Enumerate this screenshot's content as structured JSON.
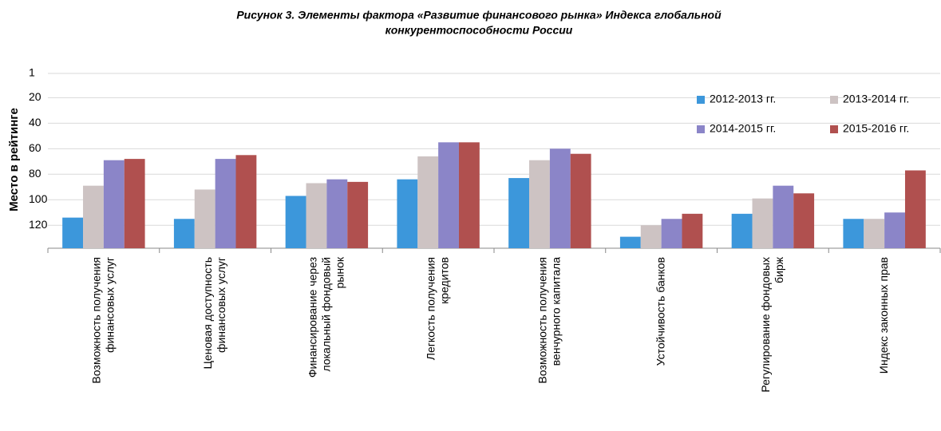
{
  "chart_data": {
    "type": "bar",
    "title": "Рисунок 3. Элементы фактора «Развитие финансового рынка» Индекса глобальной",
    "subtitle": "конкурентоспособности России",
    "y_label": "Место в рейтинге",
    "categories": [
      "Возможность получения финансовых услуг",
      "Ценовая доступность финансовых услуг",
      "Финансирование через локальный фондовый рынок",
      "Легкость получения кредитов",
      "Возможность получения венчурного капитала",
      "Устойчивость банков",
      "Регулирование фондовых бирж",
      "Индекс законных прав"
    ],
    "series": [
      {
        "name": "2012-2013 гг.",
        "color": "#3c97db",
        "values": [
          114,
          115,
          97,
          84,
          83,
          129,
          111,
          115
        ]
      },
      {
        "name": "2013-2014 гг.",
        "color": "#cdc3c3",
        "values": [
          89,
          92,
          87,
          66,
          69,
          120,
          99,
          115
        ]
      },
      {
        "name": "2014-2015 гг.",
        "color": "#8b85c8",
        "values": [
          69,
          68,
          84,
          55,
          60,
          115,
          89,
          110
        ]
      },
      {
        "name": "2015-2016 гг.",
        "color": "#b0504f",
        "values": [
          68,
          65,
          86,
          55,
          64,
          111,
          95,
          77
        ]
      }
    ],
    "ylim": [
      1,
      138
    ],
    "yticks": [
      1,
      20,
      40,
      60,
      80,
      100,
      120
    ],
    "y_reversed": true,
    "grid": true,
    "legend": "top-right"
  }
}
